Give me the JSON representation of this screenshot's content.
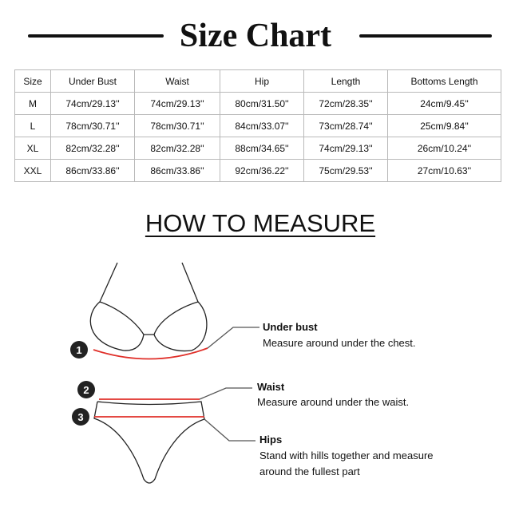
{
  "title": "Size Chart",
  "table": {
    "headers": [
      "Size",
      "Under Bust",
      "Waist",
      "Hip",
      "Length",
      "Bottoms Length"
    ],
    "rows": [
      [
        "M",
        "74cm/29.13''",
        "74cm/29.13''",
        "80cm/31.50''",
        "72cm/28.35''",
        "24cm/9.45''"
      ],
      [
        "L",
        "78cm/30.71''",
        "78cm/30.71''",
        "84cm/33.07''",
        "73cm/28.74''",
        "25cm/9.84''"
      ],
      [
        "XL",
        "82cm/32.28''",
        "82cm/32.28''",
        "88cm/34.65''",
        "74cm/29.13''",
        "26cm/10.24''"
      ],
      [
        "XXL",
        "86cm/33.86''",
        "86cm/33.86''",
        "92cm/36.22''",
        "75cm/29.53''",
        "27cm/10.63''"
      ]
    ]
  },
  "how_to_measure": "HOW TO MEASURE",
  "measures": [
    {
      "num": "1",
      "label": "Under bust",
      "desc": "Measure around under the chest."
    },
    {
      "num": "2",
      "label": "Waist",
      "desc": "Measure around under the waist."
    },
    {
      "num": "3",
      "label": "Hips",
      "desc": "Stand with hills together and measure",
      "desc2": "around  the fullest part"
    }
  ],
  "colors": {
    "measure_line": "#e0302a",
    "text": "#111111"
  }
}
